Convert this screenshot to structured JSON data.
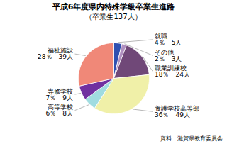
{
  "chart_data": {
    "type": "pie",
    "title": "平成6年度県内特殊学級卒業生進路",
    "subtitle": "（卒業生137人）",
    "caption": "資料：滋賀県教育委員会",
    "categories": [
      "就職",
      "その他",
      "職業訓練校",
      "養護学校高等部",
      "高等学校",
      "専修学校",
      "福祉施設"
    ],
    "values": [
      5,
      3,
      24,
      49,
      8,
      9,
      39
    ],
    "value_labels": [
      "4％　5人",
      "2％　3人",
      "18％　24人",
      "36％　49人",
      "6％　8人",
      "7％　9人",
      "28％　39人"
    ],
    "colors": [
      "#3050b0",
      "#b090c0",
      "#704878",
      "#f0f0a8",
      "#a0dce0",
      "#7030a0",
      "#f08878"
    ],
    "data_labels": true
  }
}
